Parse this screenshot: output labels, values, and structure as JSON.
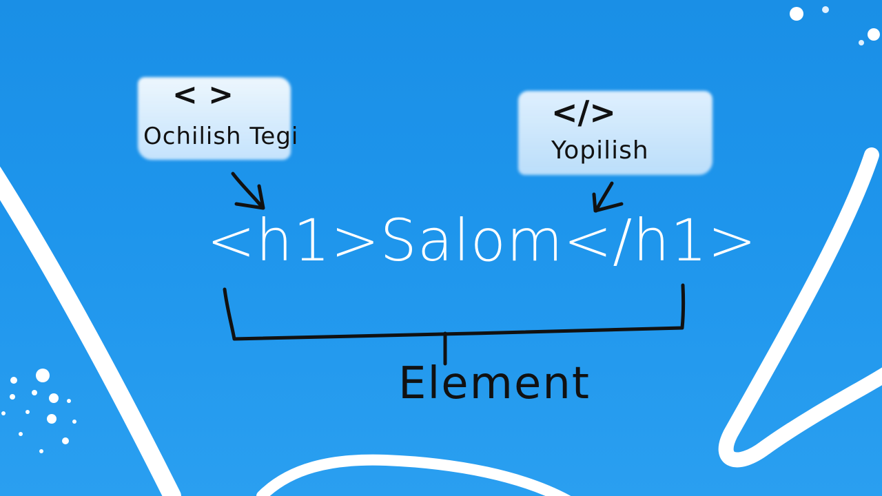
{
  "opening": {
    "glyph": "< >",
    "caption": "Ochilish Tegi"
  },
  "closing": {
    "glyph": "</>",
    "caption": "Yopilish"
  },
  "code": "<h1>Salom</h1>",
  "element_label": "Element",
  "colors": {
    "background": "#1e95ec",
    "ink": "#111111",
    "chalk": "#ffffff",
    "patch": "#e8f4ff"
  }
}
